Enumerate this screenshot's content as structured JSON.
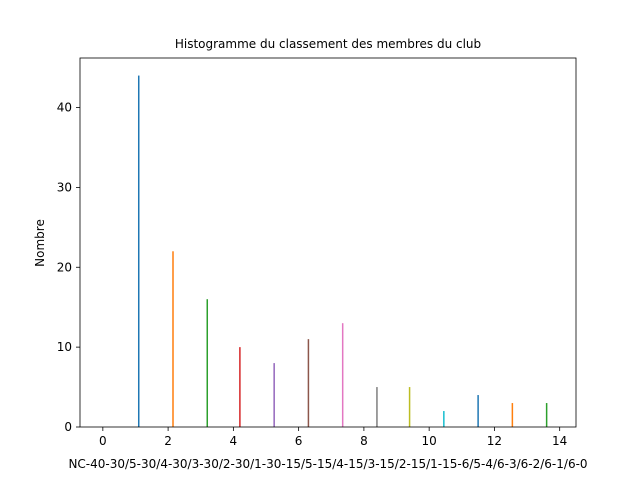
{
  "chart_data": {
    "type": "bar",
    "title": "Histogramme du classement des membres du club",
    "xlabel": "NC-40-30/5-30/4-30/3-30/2-30/1-30-15/5-15/4-15/3-15/2-15/1-15-6/5-4/6-3/6-2/6-1/6-0",
    "ylabel": "Nombre",
    "xlim": [
      -0.7,
      14.5
    ],
    "ylim": [
      0,
      46.2
    ],
    "xticks": [
      0,
      2,
      4,
      6,
      8,
      10,
      12,
      14
    ],
    "yticks": [
      0,
      10,
      20,
      30,
      40
    ],
    "grid": false,
    "series": [
      {
        "x": 1.1,
        "value": 44,
        "color": "#1f77b4"
      },
      {
        "x": 2.15,
        "value": 22,
        "color": "#ff7f0e"
      },
      {
        "x": 3.2,
        "value": 16,
        "color": "#2ca02c"
      },
      {
        "x": 4.2,
        "value": 10,
        "color": "#d62728"
      },
      {
        "x": 5.25,
        "value": 8,
        "color": "#9467bd"
      },
      {
        "x": 6.3,
        "value": 11,
        "color": "#8c564b"
      },
      {
        "x": 7.35,
        "value": 13,
        "color": "#e377c2"
      },
      {
        "x": 8.4,
        "value": 5,
        "color": "#7f7f7f"
      },
      {
        "x": 9.4,
        "value": 5,
        "color": "#bcbd22"
      },
      {
        "x": 10.45,
        "value": 2,
        "color": "#17becf"
      },
      {
        "x": 11.5,
        "value": 4,
        "color": "#1f77b4"
      },
      {
        "x": 12.55,
        "value": 3,
        "color": "#ff7f0e"
      },
      {
        "x": 13.6,
        "value": 3,
        "color": "#2ca02c"
      }
    ]
  }
}
